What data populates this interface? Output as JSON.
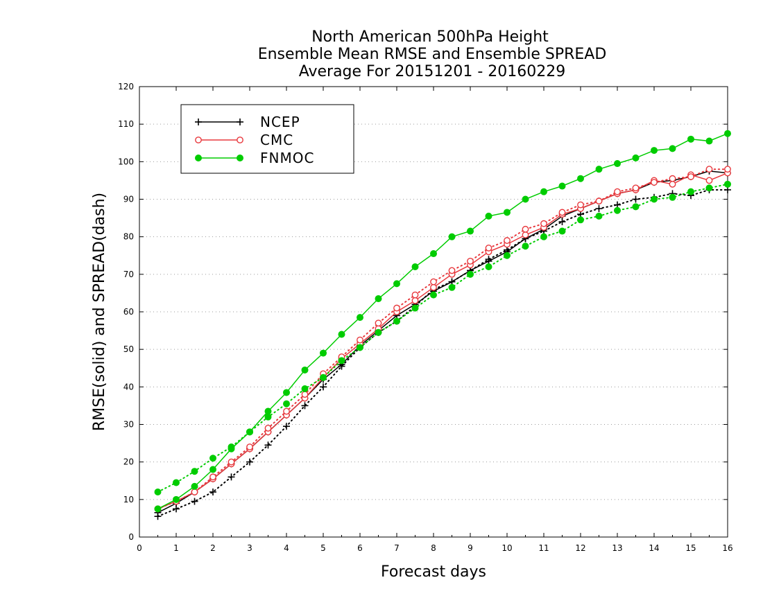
{
  "chart_data": {
    "type": "line",
    "title": [
      "North American 500hPa Height",
      "Ensemble Mean RMSE and Ensemble SPREAD",
      "Average For 20151201 - 20160229"
    ],
    "xlabel": "Forecast days",
    "ylabel": "RMSE(solid) and SPREAD(dash)",
    "xlim": [
      0,
      16
    ],
    "ylim": [
      0,
      120
    ],
    "xticks": [
      "0",
      "1",
      "2",
      "3",
      "4",
      "5",
      "6",
      "7",
      "8",
      "9",
      "10",
      "11",
      "12",
      "13",
      "14",
      "15",
      "16"
    ],
    "yticks": [
      "0",
      "10",
      "20",
      "30",
      "40",
      "50",
      "60",
      "70",
      "80",
      "90",
      "100",
      "110",
      "120"
    ],
    "grid": "horizontal dotted",
    "legend_position": "top-left",
    "x": [
      0.5,
      1,
      1.5,
      2,
      2.5,
      3,
      3.5,
      4,
      4.5,
      5,
      5.5,
      6,
      6.5,
      7,
      7.5,
      8,
      8.5,
      9,
      9.5,
      10,
      10.5,
      11,
      11.5,
      12,
      12.5,
      13,
      13.5,
      14,
      14.5,
      15,
      15.5,
      16
    ],
    "series": [
      {
        "name": "NCEP",
        "kind": "rmse",
        "style": "solid",
        "marker": "plus",
        "color": "#000000",
        "values": [
          6.5,
          9,
          12,
          15.5,
          19.5,
          23.5,
          28,
          32.5,
          37,
          42,
          46,
          51,
          55,
          59,
          62,
          65.5,
          68,
          71,
          73.5,
          76,
          79.5,
          82,
          85.5,
          87.5,
          89.5,
          91.5,
          92.5,
          94.5,
          95,
          96,
          97.5,
          97
        ]
      },
      {
        "name": "NCEP",
        "kind": "spread",
        "style": "dotted",
        "marker": "plus",
        "color": "#000000",
        "values": [
          5.5,
          7.5,
          9.5,
          12,
          16,
          20,
          24.5,
          29.5,
          35,
          40,
          45.5,
          50.5,
          54.5,
          57.5,
          61.5,
          66,
          68,
          71,
          74,
          76.5,
          79.5,
          81.5,
          84,
          86,
          87.5,
          88.5,
          90,
          90.5,
          91.5,
          91,
          92.5,
          92.5
        ]
      },
      {
        "name": "CMC",
        "kind": "rmse",
        "style": "solid",
        "marker": "circle",
        "color": "#e8383d",
        "values": [
          7.5,
          9.5,
          12,
          15.5,
          19.5,
          23.5,
          28,
          32.5,
          37,
          42.5,
          47.5,
          51.5,
          55.5,
          60,
          63,
          66.5,
          70,
          72.5,
          76,
          78,
          80.5,
          82.5,
          86,
          87.5,
          89.5,
          91.5,
          92.5,
          95,
          94,
          96.5,
          95,
          97
        ]
      },
      {
        "name": "CMC",
        "kind": "spread",
        "style": "dotted",
        "marker": "circle",
        "color": "#e8383d",
        "values": [
          7.5,
          9.5,
          12,
          16,
          20,
          24,
          29,
          33.5,
          38,
          43.5,
          48,
          52.5,
          57,
          61,
          64.5,
          68,
          71,
          73.5,
          77,
          79,
          82,
          83.5,
          86.5,
          88.5,
          89.5,
          92,
          93,
          94.5,
          95.5,
          96,
          98,
          98
        ]
      },
      {
        "name": "FNMOC",
        "kind": "rmse",
        "style": "solid",
        "marker": "dot",
        "color": "#00cc00",
        "values": [
          7.5,
          10,
          13.5,
          18,
          23.5,
          28,
          33.5,
          38.5,
          44.5,
          49,
          54,
          58.5,
          63.5,
          67.5,
          72,
          75.5,
          80,
          81.5,
          85.5,
          86.5,
          90,
          92,
          93.5,
          95.5,
          98,
          99.5,
          101,
          103,
          103.5,
          106,
          105.5,
          107.5
        ]
      },
      {
        "name": "FNMOC",
        "kind": "spread",
        "style": "dotted",
        "marker": "dot",
        "color": "#00cc00",
        "values": [
          12,
          14.5,
          17.5,
          21,
          24,
          28,
          32,
          35.5,
          39.5,
          42.5,
          47,
          50.5,
          54.5,
          57.5,
          61,
          64.5,
          66.5,
          70,
          72,
          75,
          77.5,
          80,
          81.5,
          84.5,
          85.5,
          87,
          88,
          90,
          90.5,
          92,
          93,
          94
        ]
      }
    ]
  }
}
